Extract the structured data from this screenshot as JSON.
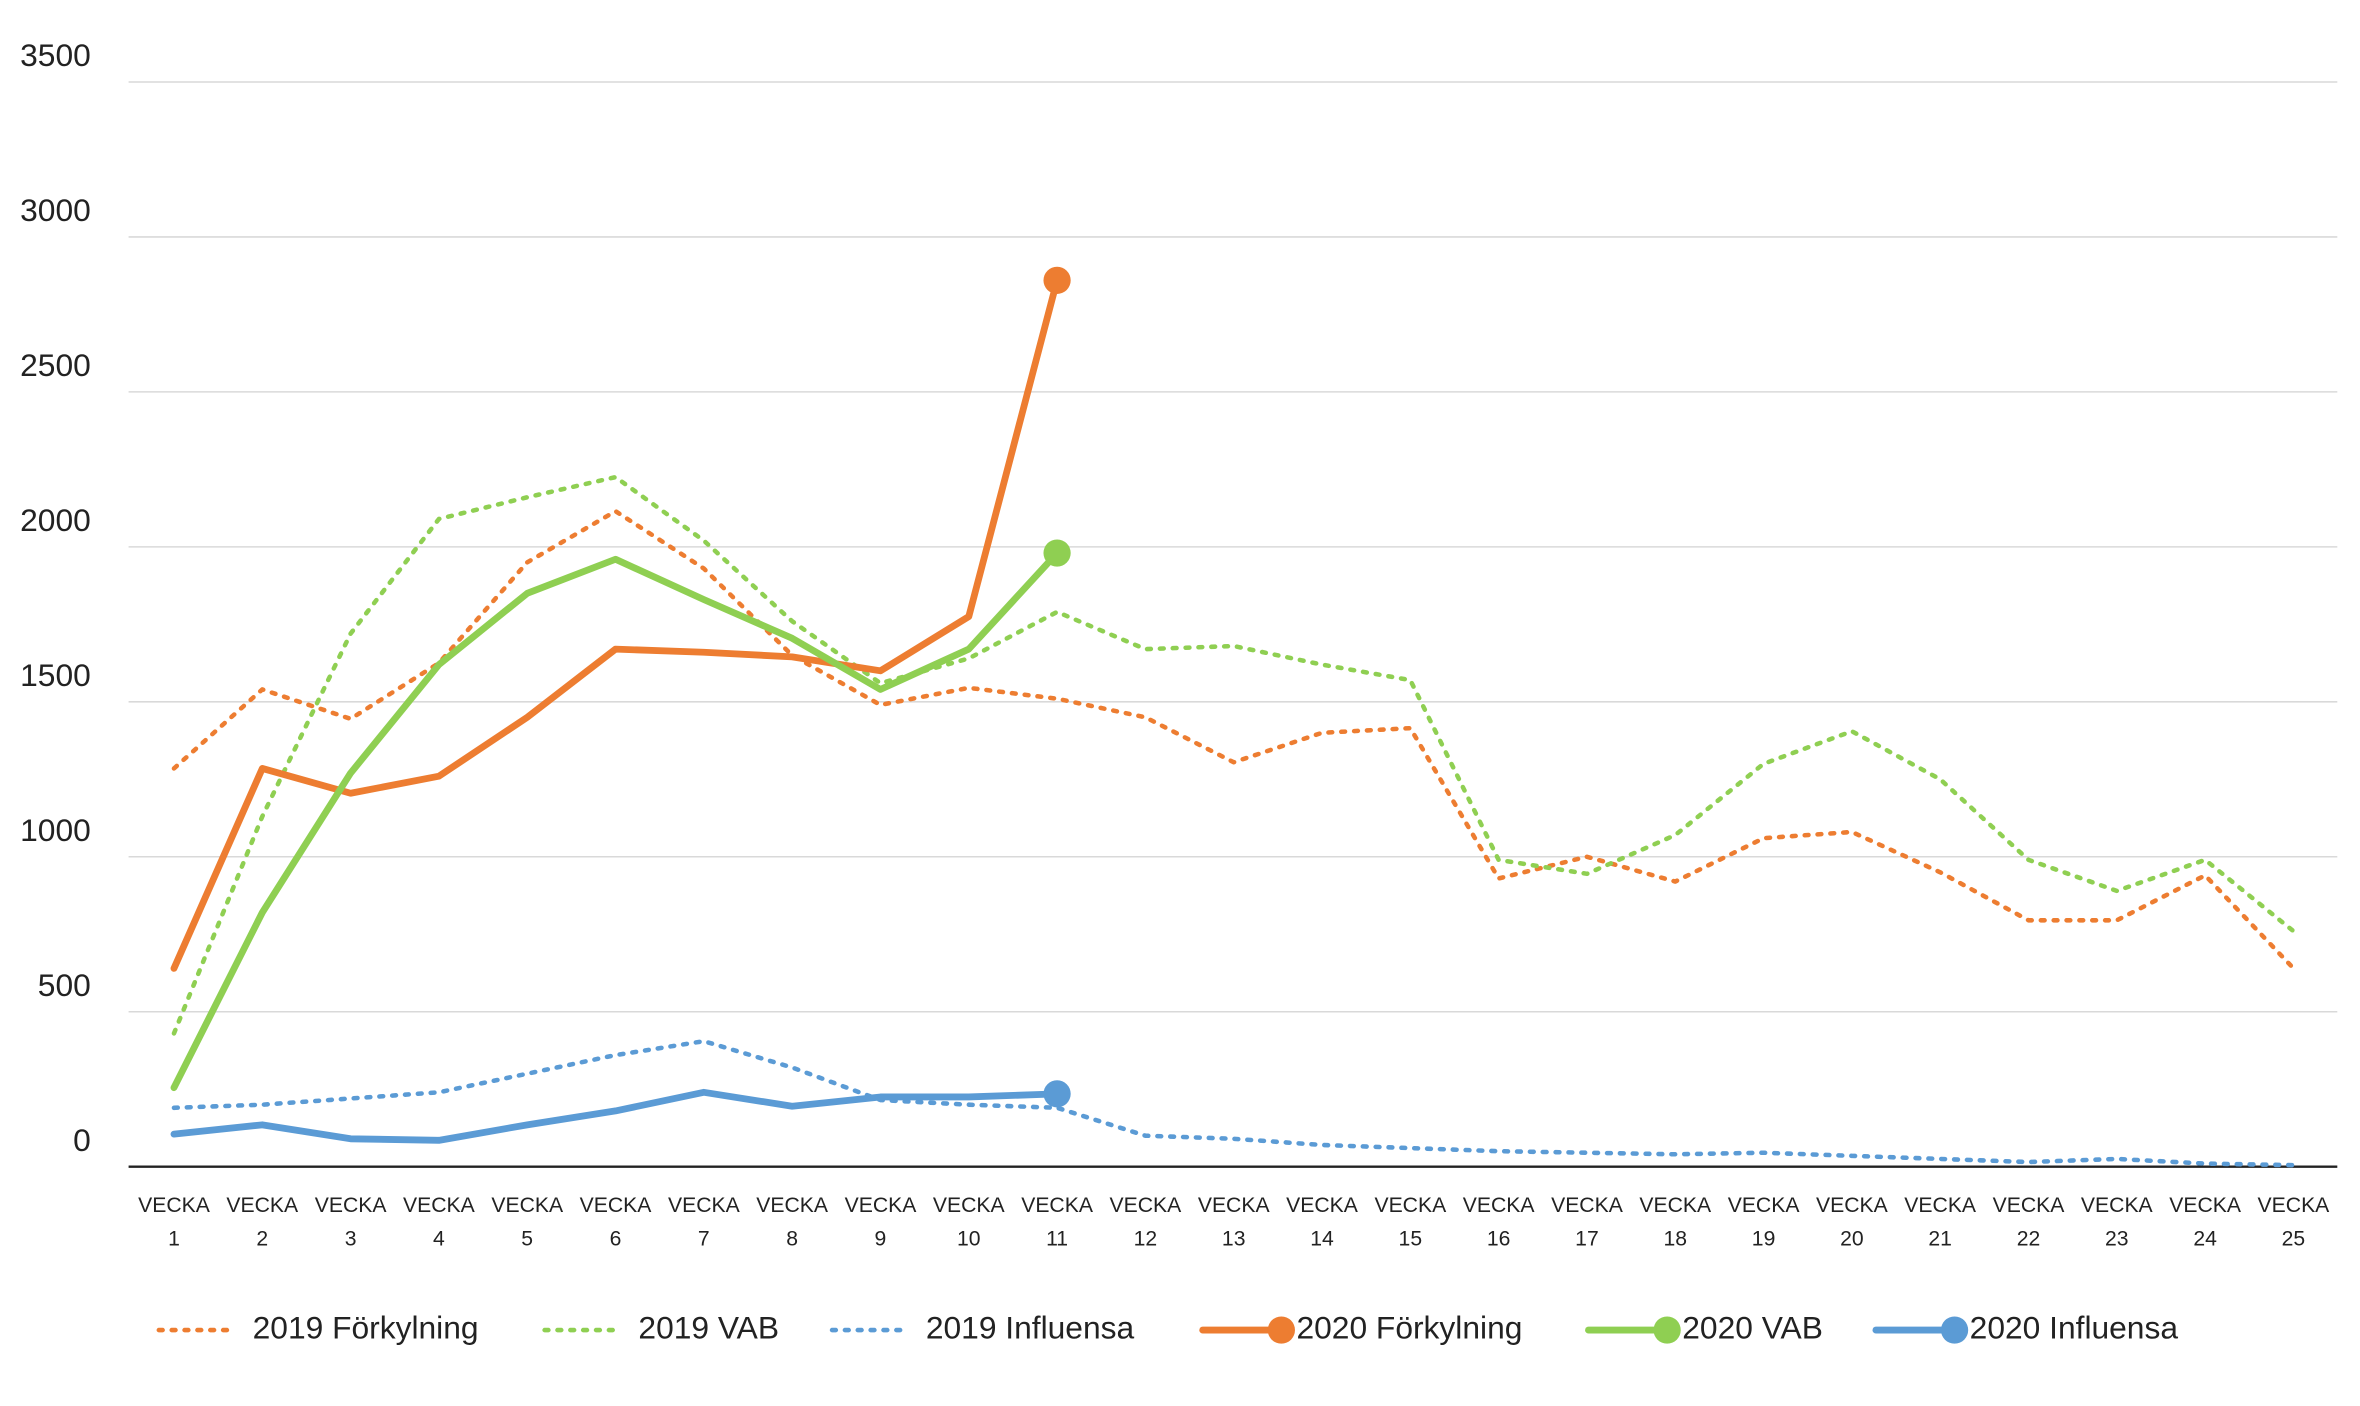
{
  "chart_data": {
    "type": "line",
    "categories": [
      "VECKA 1",
      "VECKA 2",
      "VECKA 3",
      "VECKA 4",
      "VECKA 5",
      "VECKA 6",
      "VECKA 7",
      "VECKA 8",
      "VECKA 9",
      "VECKA 10",
      "VECKA 11",
      "VECKA 12",
      "VECKA 13",
      "VECKA 14",
      "VECKA 15",
      "VECKA 16",
      "VECKA 17",
      "VECKA 18",
      "VECKA 19",
      "VECKA 20",
      "VECKA 21",
      "VECKA 22",
      "VECKA 23",
      "VECKA 24",
      "VECKA 25"
    ],
    "ylim": [
      0,
      3500
    ],
    "yticks": [
      0,
      500,
      1000,
      1500,
      2000,
      2500,
      3000,
      3500
    ],
    "grid": true,
    "legend": "bottom",
    "series": [
      {
        "name": "2019 Förkylning",
        "color": "#ed7d31",
        "style": "dotted",
        "marker_last": false,
        "values": [
          1285,
          1540,
          1445,
          1625,
          1950,
          2115,
          1930,
          1650,
          1490,
          1545,
          1510,
          1450,
          1305,
          1400,
          1415,
          930,
          1000,
          920,
          1060,
          1080,
          950,
          795,
          795,
          940,
          640
        ]
      },
      {
        "name": "2019 VAB",
        "color": "#8fcf52",
        "style": "dotted",
        "marker_last": false,
        "values": [
          430,
          1130,
          1720,
          2090,
          2160,
          2225,
          2020,
          1760,
          1560,
          1640,
          1790,
          1670,
          1680,
          1620,
          1570,
          990,
          945,
          1070,
          1300,
          1405,
          1250,
          990,
          890,
          990,
          760
        ]
      },
      {
        "name": "2019 Influensa",
        "color": "#5b9bd5",
        "style": "dotted",
        "marker_last": false,
        "values": [
          190,
          200,
          220,
          240,
          300,
          360,
          405,
          320,
          215,
          200,
          190,
          100,
          90,
          70,
          60,
          50,
          45,
          40,
          45,
          35,
          25,
          15,
          25,
          10,
          5
        ]
      },
      {
        "name": "2020 Förkylning",
        "color": "#ed7d31",
        "style": "solid",
        "marker_last": true,
        "values": [
          640,
          1285,
          1205,
          1260,
          1450,
          1670,
          1660,
          1645,
          1600,
          1775,
          2860,
          null,
          null,
          null,
          null,
          null,
          null,
          null,
          null,
          null,
          null,
          null,
          null,
          null,
          null
        ]
      },
      {
        "name": "2020 VAB",
        "color": "#8fcf52",
        "style": "solid",
        "marker_last": true,
        "values": [
          255,
          820,
          1270,
          1620,
          1850,
          1960,
          1830,
          1705,
          1540,
          1670,
          1980,
          null,
          null,
          null,
          null,
          null,
          null,
          null,
          null,
          null,
          null,
          null,
          null,
          null,
          null
        ]
      },
      {
        "name": "2020  Influensa",
        "color": "#5b9bd5",
        "style": "solid",
        "marker_last": true,
        "values": [
          105,
          135,
          90,
          85,
          135,
          180,
          240,
          195,
          225,
          225,
          235,
          null,
          null,
          null,
          null,
          null,
          null,
          null,
          null,
          null,
          null,
          null,
          null,
          null,
          null
        ]
      }
    ]
  }
}
